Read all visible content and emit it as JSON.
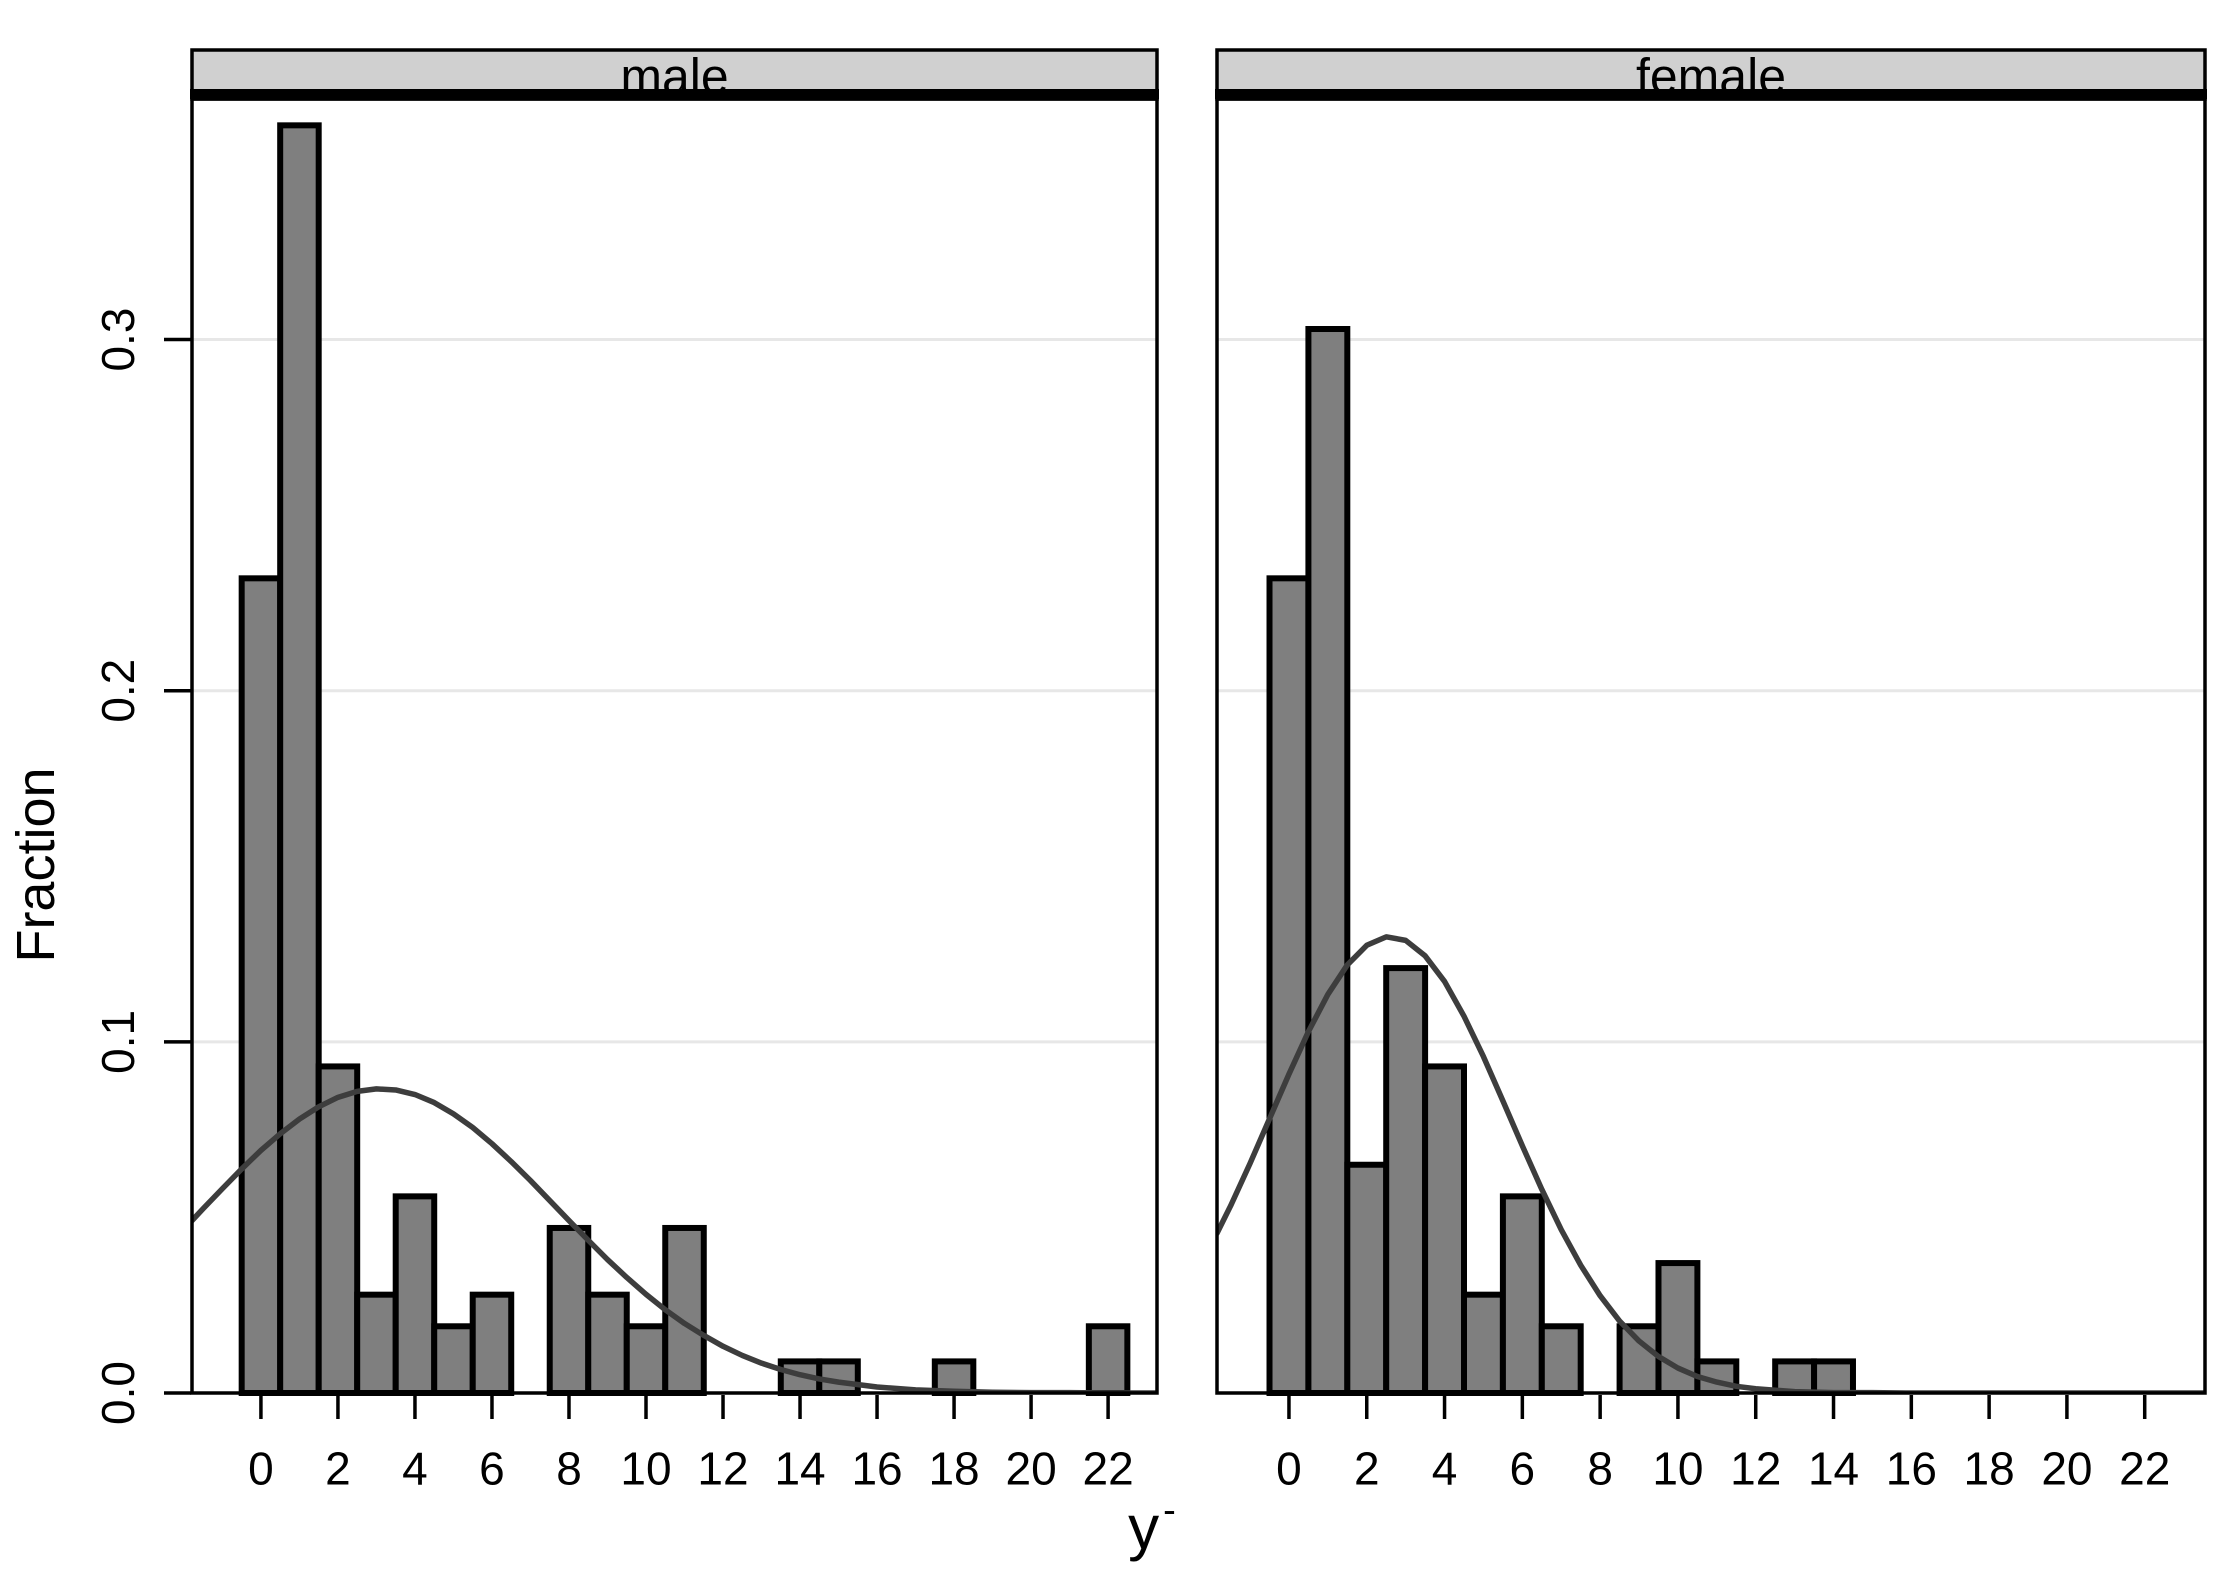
{
  "figure": {
    "y_axis_title": "Fraction",
    "x_axis_title": "y",
    "x_axis_title_mark": "-"
  },
  "chart_data": {
    "type": "bar",
    "kind": "faceted-histogram-with-normal-density-overlay",
    "title": "",
    "xlabel": "y",
    "ylabel": "Fraction",
    "grid": true,
    "legend": "none",
    "bar_width": 1,
    "categories": [
      0,
      1,
      2,
      3,
      4,
      5,
      6,
      7,
      8,
      9,
      10,
      11,
      12,
      13,
      14,
      15,
      16,
      17,
      18,
      19,
      20,
      21,
      22
    ],
    "x_ticks": [
      0,
      2,
      4,
      6,
      8,
      10,
      12,
      14,
      16,
      18,
      20,
      22
    ],
    "x_tick_labels": [
      "0",
      "2",
      "4",
      "6",
      "8",
      "10",
      "12",
      "14",
      "16",
      "18",
      "20",
      "22"
    ],
    "y_ticks": [
      0.0,
      0.1,
      0.2,
      0.3
    ],
    "y_tick_labels": [
      "0.0",
      "0.1",
      "0.2",
      "0.3"
    ],
    "ylim": [
      0,
      0.3685
    ],
    "panels": [
      {
        "label": "male",
        "xlim": [
          -1.79,
          23.27
        ],
        "values": [
          0.232,
          0.361,
          0.093,
          0.028,
          0.056,
          0.019,
          0.028,
          0,
          0.047,
          0.028,
          0.019,
          0.047,
          0,
          0,
          0.009,
          0.009,
          0,
          0,
          0.009,
          0,
          0,
          0,
          0.019
        ],
        "curve": {
          "type": "normal-density",
          "mean": 3.1,
          "sd": 4.6,
          "peak": 0.0866,
          "x": [
            -1.79,
            -1.5,
            -1,
            -0.5,
            0,
            0.5,
            1,
            1.5,
            2,
            2.5,
            3,
            3.5,
            4,
            4.5,
            5,
            5.5,
            6,
            6.5,
            7,
            7.5,
            8,
            8.5,
            9,
            9.5,
            10,
            10.5,
            11,
            11.5,
            12,
            12.5,
            13,
            13.5,
            14,
            14.5,
            15,
            16,
            17,
            18,
            19,
            20,
            21,
            22,
            23.27
          ],
          "y": [
            0.0491,
            0.0525,
            0.0582,
            0.0638,
            0.0691,
            0.0738,
            0.078,
            0.0815,
            0.0842,
            0.0859,
            0.0866,
            0.0863,
            0.085,
            0.0827,
            0.0795,
            0.0756,
            0.071,
            0.0659,
            0.0605,
            0.0548,
            0.0491,
            0.0435,
            0.038,
            0.0329,
            0.0281,
            0.0237,
            0.0198,
            0.0164,
            0.0133,
            0.0107,
            0.0085,
            0.0067,
            0.0052,
            0.004,
            0.0031,
            0.0017,
            0.0009,
            0.0005,
            0.0002,
            0.0001,
            0.0001,
            0.0,
            0.0
          ]
        }
      },
      {
        "label": "female",
        "xlim": [
          -1.85,
          23.55
        ],
        "values": [
          0.232,
          0.303,
          0.065,
          0.121,
          0.093,
          0.028,
          0.056,
          0.019,
          0,
          0.019,
          0.037,
          0.009,
          0,
          0.009,
          0.009,
          0,
          0,
          0,
          0,
          0,
          0,
          0,
          0
        ],
        "curve": {
          "type": "normal-density",
          "mean": 2.6,
          "sd": 3.07,
          "peak": 0.13,
          "x": [
            -1.85,
            -1.5,
            -1,
            -0.5,
            0,
            0.5,
            1,
            1.5,
            2,
            2.5,
            3,
            3.5,
            4,
            4.5,
            5,
            5.5,
            6,
            6.5,
            7,
            7.5,
            8,
            8.5,
            9,
            9.5,
            10,
            10.5,
            11,
            11.5,
            12,
            13,
            14,
            15,
            16,
            18,
            20,
            22,
            23.55
          ],
          "y": [
            0.0455,
            0.0533,
            0.0654,
            0.0781,
            0.0908,
            0.1029,
            0.1135,
            0.1219,
            0.1275,
            0.1299,
            0.1289,
            0.1245,
            0.1172,
            0.1073,
            0.0958,
            0.0832,
            0.0704,
            0.058,
            0.0465,
            0.0364,
            0.0277,
            0.0205,
            0.0148,
            0.0104,
            0.0071,
            0.0047,
            0.0031,
            0.0019,
            0.0012,
            0.0004,
            0.0001,
            0.0001,
            0,
            0,
            0,
            0,
            0
          ]
        }
      }
    ],
    "colors": {
      "background": "#ffffff",
      "bar_fill": "#7f7f7f",
      "bar_stroke": "#000000",
      "curve": "#3d3d3d",
      "gridline": "#e7e7e7",
      "header_fill": "#d0d0d0",
      "border": "#000000",
      "text": "#000000"
    }
  }
}
